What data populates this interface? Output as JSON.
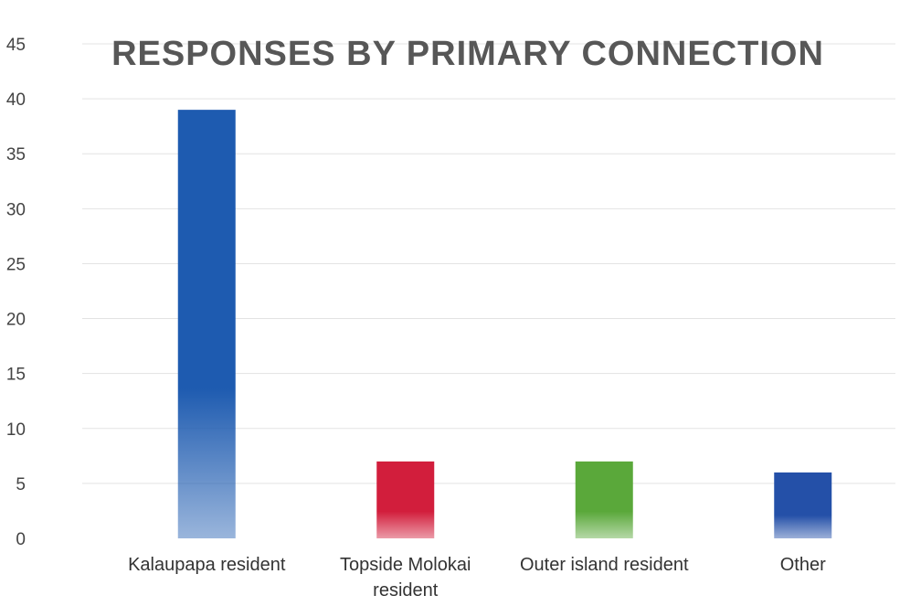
{
  "chart_data": {
    "type": "bar",
    "title": "RESPONSES BY PRIMARY CONNECTION",
    "xlabel": "",
    "ylabel": "",
    "categories": [
      [
        "Kalaupapa resident"
      ],
      [
        "Topside Molokai",
        "resident"
      ],
      [
        "Outer island resident"
      ],
      [
        "Other"
      ]
    ],
    "values": [
      39,
      7,
      7,
      6
    ],
    "ylim": [
      0,
      45
    ],
    "yticks": [
      "0",
      "5",
      "10",
      "15",
      "20",
      "25",
      "30",
      "35",
      "40",
      "45"
    ],
    "grid": true,
    "legend": "none",
    "colors": [
      "#1e5bb0",
      "#d21e3c",
      "#5aa83a",
      "#2450a8"
    ]
  }
}
